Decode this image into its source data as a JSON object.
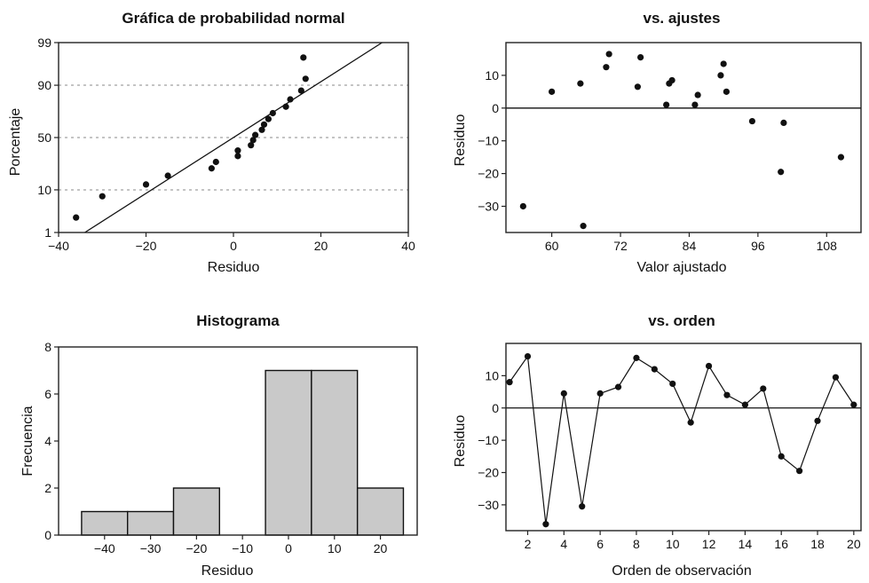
{
  "chart_data": [
    {
      "id": "prob",
      "type": "scatter",
      "title": "Gráfica de probabilidad normal",
      "xlabel": "Residuo",
      "ylabel": "Porcentaje",
      "xlim": [
        -40,
        40
      ],
      "xticks": [
        -40,
        -20,
        0,
        20,
        40
      ],
      "yticks": [
        1,
        10,
        50,
        90,
        99
      ],
      "yscale": "normal-probability",
      "grid": true,
      "points": [
        {
          "x": -36,
          "y": 2.5
        },
        {
          "x": -30,
          "y": 7.5
        },
        {
          "x": -20,
          "y": 12.5
        },
        {
          "x": -15,
          "y": 17.5
        },
        {
          "x": -5,
          "y": 22.5
        },
        {
          "x": -4,
          "y": 27.5
        },
        {
          "x": 1,
          "y": 32.5
        },
        {
          "x": 1,
          "y": 37.5
        },
        {
          "x": 4,
          "y": 42.5
        },
        {
          "x": 4.5,
          "y": 47.5
        },
        {
          "x": 5,
          "y": 52.5
        },
        {
          "x": 6.5,
          "y": 57.5
        },
        {
          "x": 7,
          "y": 62.5
        },
        {
          "x": 8,
          "y": 67.5
        },
        {
          "x": 9,
          "y": 72.5
        },
        {
          "x": 12,
          "y": 77.5
        },
        {
          "x": 13,
          "y": 82.5
        },
        {
          "x": 15.5,
          "y": 87.5
        },
        {
          "x": 16.5,
          "y": 92.5
        },
        {
          "x": 16,
          "y": 97.5
        }
      ],
      "fit_line": [
        {
          "x": -34,
          "y": 1
        },
        {
          "x": 34,
          "y": 99
        }
      ]
    },
    {
      "id": "fits",
      "type": "scatter",
      "title": "vs. ajustes",
      "xlabel": "Valor ajustado",
      "ylabel": "Residuo",
      "xlim": [
        52,
        114
      ],
      "ylim": [
        -38,
        20
      ],
      "xticks": [
        60,
        72,
        84,
        96,
        108
      ],
      "yticks": [
        10,
        0,
        -10,
        -20,
        -30
      ],
      "ref_y": 0,
      "points": [
        {
          "x": 55,
          "y": -30
        },
        {
          "x": 60,
          "y": 5
        },
        {
          "x": 65,
          "y": 7.5
        },
        {
          "x": 65.5,
          "y": -36
        },
        {
          "x": 69.5,
          "y": 12.5
        },
        {
          "x": 70,
          "y": 16.5
        },
        {
          "x": 75,
          "y": 6.5
        },
        {
          "x": 75.5,
          "y": 15.5
        },
        {
          "x": 80,
          "y": 1
        },
        {
          "x": 80.5,
          "y": 7.5
        },
        {
          "x": 81,
          "y": 8.5
        },
        {
          "x": 85,
          "y": 1
        },
        {
          "x": 85.5,
          "y": 4
        },
        {
          "x": 89.5,
          "y": 10
        },
        {
          "x": 90,
          "y": 13.5
        },
        {
          "x": 90.5,
          "y": 5
        },
        {
          "x": 95,
          "y": -4
        },
        {
          "x": 100,
          "y": -19.5
        },
        {
          "x": 100.5,
          "y": -4.5
        },
        {
          "x": 110.5,
          "y": -15
        }
      ]
    },
    {
      "id": "hist",
      "type": "bar",
      "title": "Histograma",
      "xlabel": "Residuo",
      "ylabel": "Frecuencia",
      "xlim": [
        -50,
        28
      ],
      "ylim": [
        0,
        8
      ],
      "xticks": [
        -40,
        -30,
        -20,
        -10,
        0,
        10,
        20
      ],
      "yticks": [
        0,
        2,
        4,
        6,
        8
      ],
      "bin_width": 10,
      "bins": [
        {
          "center": -40,
          "value": 1
        },
        {
          "center": -30,
          "value": 1
        },
        {
          "center": -20,
          "value": 2
        },
        {
          "center": -10,
          "value": 0
        },
        {
          "center": 0,
          "value": 7
        },
        {
          "center": 10,
          "value": 7
        },
        {
          "center": 20,
          "value": 2
        }
      ]
    },
    {
      "id": "order",
      "type": "line",
      "title": "vs. orden",
      "xlabel": "Orden de observación",
      "ylabel": "Residuo",
      "xlim": [
        0.8,
        20.4
      ],
      "ylim": [
        -38,
        20
      ],
      "xticks": [
        2,
        4,
        6,
        8,
        10,
        12,
        14,
        16,
        18,
        20
      ],
      "yticks": [
        10,
        0,
        -10,
        -20,
        -30
      ],
      "ref_y": 0,
      "x": [
        1,
        2,
        3,
        4,
        5,
        6,
        7,
        8,
        9,
        10,
        11,
        12,
        13,
        14,
        15,
        16,
        17,
        18,
        19,
        20
      ],
      "values": [
        8,
        16,
        -36,
        4.5,
        -30.5,
        4.5,
        6.5,
        15.5,
        12,
        7.5,
        -4.5,
        13,
        4,
        1,
        6,
        -15,
        -19.5,
        -4,
        9.5,
        1
      ]
    }
  ]
}
